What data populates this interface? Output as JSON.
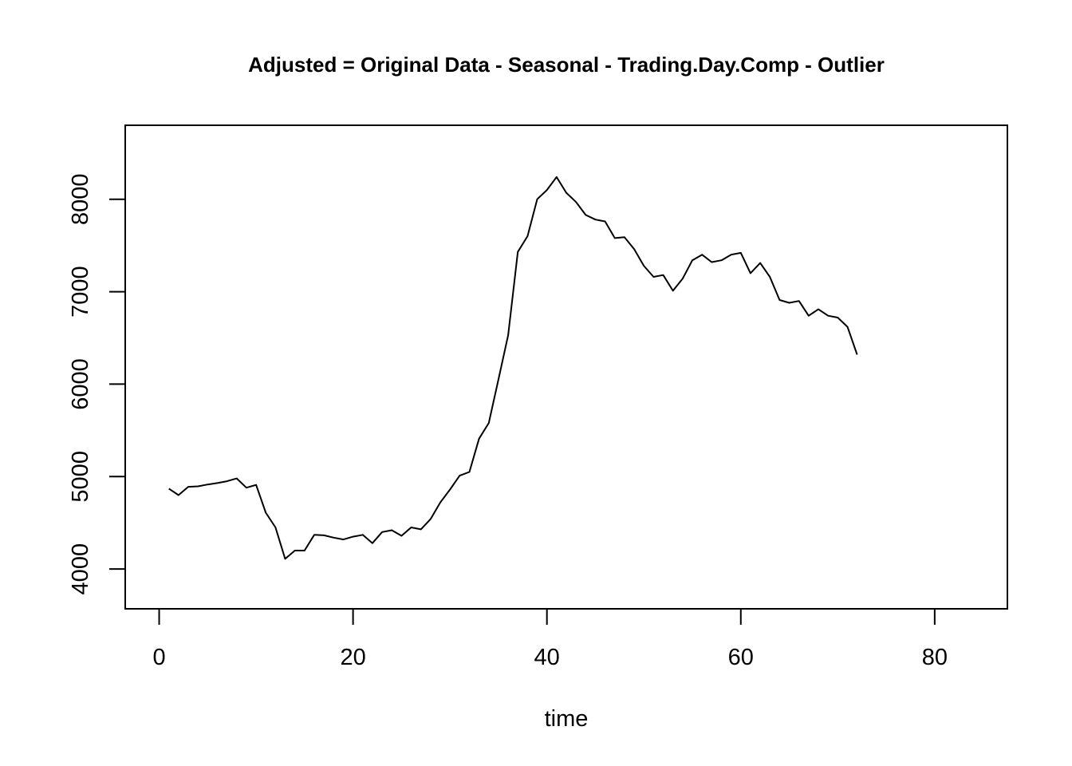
{
  "chart_data": {
    "type": "line",
    "title": "Adjusted = Original Data - Seasonal - Trading.Day.Comp - Outlier",
    "xlabel": "time",
    "ylabel": "",
    "xlim": [
      -3.5,
      87.5
    ],
    "ylim": [
      3570,
      8800
    ],
    "xticks": [
      0,
      20,
      40,
      60,
      80
    ],
    "yticks": [
      4000,
      5000,
      6000,
      7000,
      8000
    ],
    "xtick_labels": [
      "0",
      "20",
      "40",
      "60",
      "80"
    ],
    "ytick_labels": [
      "4000",
      "5000",
      "6000",
      "7000",
      "8000"
    ],
    "grid": false,
    "legend": "none",
    "line_color": "#000000",
    "series": [
      {
        "x": [
          1,
          2,
          3,
          4,
          5,
          6,
          7,
          8,
          9,
          10,
          11,
          12,
          13,
          14,
          15,
          16,
          17,
          18,
          19,
          20,
          21,
          22,
          23,
          24,
          25,
          26,
          27,
          28,
          29,
          30,
          31,
          32,
          33,
          34,
          35,
          36,
          37,
          38,
          39,
          40,
          41,
          42,
          43,
          44,
          45,
          46,
          47,
          48,
          49,
          50,
          51,
          52,
          53,
          54,
          55,
          56,
          57,
          58,
          59,
          60,
          61,
          62,
          63,
          64,
          65,
          66,
          67,
          68,
          69,
          70,
          71,
          72
        ],
        "values": [
          4870,
          4800,
          4890,
          4895,
          4915,
          4930,
          4950,
          4980,
          4880,
          4910,
          4610,
          4450,
          4110,
          4200,
          4200,
          4370,
          4365,
          4340,
          4320,
          4350,
          4370,
          4280,
          4400,
          4420,
          4360,
          4450,
          4430,
          4540,
          4720,
          4860,
          5010,
          5050,
          5410,
          5580,
          6050,
          6530,
          7430,
          7600,
          8000,
          8100,
          8240,
          8070,
          7970,
          7830,
          7780,
          7760,
          7580,
          7590,
          7460,
          7280,
          7160,
          7180,
          7010,
          7140,
          7340,
          7400,
          7320,
          7340,
          7400,
          7420,
          7200,
          7310,
          7160,
          6910,
          6880,
          6900,
          6740,
          6810,
          6740,
          6720,
          6620,
          6320
        ]
      }
    ]
  }
}
